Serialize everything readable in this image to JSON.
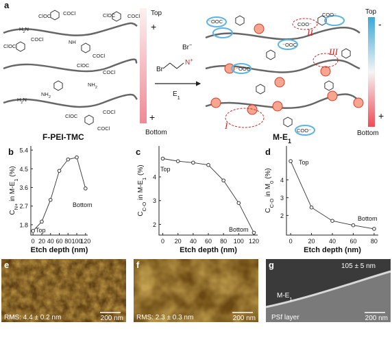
{
  "panel_a": {
    "label": "a",
    "left_caption": "F-PEI-TMC",
    "right_caption": [
      "M-E",
      {
        "sub": "1"
      }
    ],
    "reagent": {
      "br": "Br",
      "n": [
        "N",
        {
          "sup": "+"
        }
      ],
      "counter": [
        "Br",
        {
          "sup": "−"
        }
      ]
    },
    "arrow_label": [
      "E",
      {
        "sub": "1"
      }
    ],
    "left_bar": {
      "top": "Top",
      "bottom": "Bottom",
      "plus_top": "+",
      "plus_bottom": "+"
    },
    "right_bar": {
      "top": "Top",
      "bottom": "Bottom",
      "minus": "-",
      "plus": "+"
    },
    "groups_left": [
      "ClOC",
      "COCl",
      "ClOC",
      "COCl",
      "ClOC",
      "COCl",
      [
        "H",
        {
          "sub": "2"
        },
        "N"
      ],
      "NH",
      "COCl",
      "ClOC",
      "COCl",
      [
        "NH",
        {
          "sub": "2"
        }
      ],
      [
        "NH",
        {
          "sub": "2"
        }
      ],
      [
        "H",
        {
          "sub": "2"
        },
        "N"
      ],
      "COCl",
      "ClOC",
      "COCl"
    ],
    "groups_right": [
      [
        "⁻OOC"
      ],
      [
        "COO⁻"
      ],
      [
        "⁻OOC"
      ],
      [
        "⁻OOC"
      ],
      [
        "COO⁻"
      ],
      [
        "COO⁻"
      ]
    ],
    "sites": [
      "I",
      "II",
      "III"
    ]
  },
  "chart_data": [
    {
      "type": "line",
      "label": "b",
      "ylabel": [
        "C",
        {
          "sub": "N+"
        },
        " in M-E",
        {
          "sub": "1"
        },
        " (%)"
      ],
      "xlabel": "Etch depth (nm)",
      "x": [
        0,
        20,
        40,
        60,
        80,
        100,
        120
      ],
      "values": [
        1.5,
        1.95,
        3.0,
        4.4,
        4.95,
        5.05,
        3.55
      ],
      "xlim": [
        -5,
        125
      ],
      "ylim": [
        1.3,
        5.6
      ],
      "xticks": [
        0,
        20,
        40,
        60,
        80,
        100,
        120
      ],
      "yticks": [
        1.8,
        2.7,
        3.6,
        4.5,
        5.4
      ],
      "color": "#333333",
      "annotations": {
        "top": "Top",
        "bottom": "Bottom"
      }
    },
    {
      "type": "line",
      "label": "c",
      "ylabel": [
        "C",
        {
          "sub": "C-O"
        },
        " in M-E",
        {
          "sub": "1"
        },
        " (%)"
      ],
      "xlabel": "Etch depth (nm)",
      "x": [
        0,
        20,
        40,
        60,
        80,
        100,
        120
      ],
      "values": [
        4.77,
        4.66,
        4.6,
        4.5,
        3.85,
        2.9,
        1.65
      ],
      "xlim": [
        -5,
        125
      ],
      "ylim": [
        1.55,
        5.3
      ],
      "xticks": [
        0,
        20,
        40,
        60,
        80,
        100,
        120
      ],
      "yticks": [
        2,
        3,
        4
      ],
      "color": "#333333",
      "annotations": {
        "top": "Top",
        "bottom": "Bottom"
      }
    },
    {
      "type": "line",
      "label": "d",
      "ylabel": [
        "C",
        {
          "sub": "C-O"
        },
        " in M",
        {
          "sub": "0"
        },
        " (%)"
      ],
      "xlabel": "Etch depth (nm)",
      "x": [
        0,
        20,
        40,
        60,
        80
      ],
      "values": [
        5.05,
        2.45,
        1.7,
        1.45,
        1.25
      ],
      "xlim": [
        -4,
        84
      ],
      "ylim": [
        0.9,
        5.9
      ],
      "xticks": [
        0,
        20,
        40,
        60,
        80
      ],
      "yticks": [
        2,
        3,
        4
      ],
      "color": "#333333",
      "annotations": {
        "top": "Top",
        "bottom": "Bottom"
      }
    }
  ],
  "images": [
    {
      "label": "e",
      "rms": "RMS: 4.4 ± 0.2 nm",
      "scale": "200 nm"
    },
    {
      "label": "f",
      "rms": "RMS: 2.3 ± 0.3 nm",
      "scale": "200 nm"
    },
    {
      "label": "g",
      "thickness": "105 ± 5 nm",
      "layer": [
        "M-E",
        {
          "sub": "1"
        }
      ],
      "substrate": "PSf layer",
      "scale": "200 nm"
    }
  ]
}
